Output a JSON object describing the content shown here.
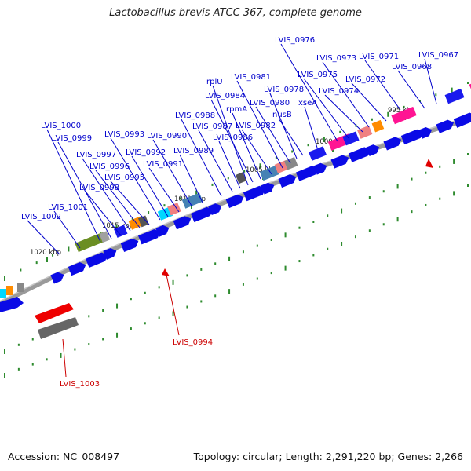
{
  "title": "Lactobacillus brevis ATCC 367, complete genome",
  "footer": {
    "accession": "Accession: NC_008497",
    "summary": "Topology: circular; Length: 2,291,220 bp; Genes: 2,266"
  },
  "colors": {
    "label_forward": "#0000cc",
    "label_reverse": "#cc0000",
    "cds": "#0a0ae6",
    "backbone": "#9a9a9a",
    "tick": "#2e8b2e",
    "marker": "#e00000"
  },
  "ticks": [
    {
      "label": "995 kbp"
    },
    {
      "label": "1000 kbp"
    },
    {
      "label": "1005 kbp"
    },
    {
      "label": "1010 kbp"
    },
    {
      "label": "1015 kbp"
    },
    {
      "label": "1020 kbp"
    }
  ],
  "genes": [
    {
      "label": "LVIS_0967",
      "strand": "forward"
    },
    {
      "label": "LVIS_0968",
      "strand": "forward"
    },
    {
      "label": "LVIS_0971",
      "strand": "forward"
    },
    {
      "label": "LVIS_0972",
      "strand": "forward"
    },
    {
      "label": "LVIS_0973",
      "strand": "forward"
    },
    {
      "label": "LVIS_0974",
      "strand": "forward"
    },
    {
      "label": "LVIS_0975",
      "strand": "forward"
    },
    {
      "label": "LVIS_0976",
      "strand": "forward"
    },
    {
      "label": "xseA",
      "strand": "forward"
    },
    {
      "label": "nusB",
      "strand": "forward"
    },
    {
      "label": "LVIS_0978",
      "strand": "forward"
    },
    {
      "label": "LVIS_0980",
      "strand": "forward"
    },
    {
      "label": "LVIS_0981",
      "strand": "forward"
    },
    {
      "label": "LVIS_0982",
      "strand": "forward"
    },
    {
      "label": "rpmA",
      "strand": "forward"
    },
    {
      "label": "LVIS_0984",
      "strand": "forward"
    },
    {
      "label": "rplU",
      "strand": "forward"
    },
    {
      "label": "LVIS_0986",
      "strand": "forward"
    },
    {
      "label": "LVIS_0987",
      "strand": "forward"
    },
    {
      "label": "LVIS_0988",
      "strand": "forward"
    },
    {
      "label": "LVIS_0989",
      "strand": "forward"
    },
    {
      "label": "LVIS_0990",
      "strand": "forward"
    },
    {
      "label": "LVIS_0991",
      "strand": "forward"
    },
    {
      "label": "LVIS_0992",
      "strand": "forward"
    },
    {
      "label": "LVIS_0993",
      "strand": "forward"
    },
    {
      "label": "LVIS_0995",
      "strand": "forward"
    },
    {
      "label": "LVIS_0996",
      "strand": "forward"
    },
    {
      "label": "LVIS_0997",
      "strand": "forward"
    },
    {
      "label": "LVIS_0998",
      "strand": "forward"
    },
    {
      "label": "LVIS_0999",
      "strand": "forward"
    },
    {
      "label": "LVIS_1000",
      "strand": "forward"
    },
    {
      "label": "LVIS_1001",
      "strand": "forward"
    },
    {
      "label": "LVIS_1002",
      "strand": "forward"
    },
    {
      "label": "LVIS_0994",
      "strand": "reverse"
    },
    {
      "label": "LVIS_1003",
      "strand": "reverse"
    }
  ]
}
